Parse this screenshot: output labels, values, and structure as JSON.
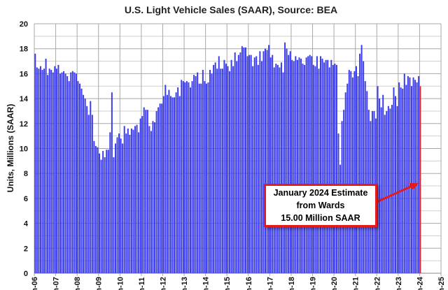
{
  "chart_data": {
    "type": "bar",
    "title": "U.S. Light Vehicle Sales (SAAR), Source: BEA",
    "xlabel": "",
    "ylabel": "Units, Millions (SAAR)",
    "ylim": [
      0,
      20
    ],
    "yticks": [
      0,
      2,
      4,
      6,
      8,
      10,
      12,
      14,
      16,
      18,
      20
    ],
    "xtick_labels": [
      "Jan-06",
      "Jan-07",
      "Jan-08",
      "Jan-09",
      "Jan-10",
      "Jan-11",
      "Jan-12",
      "Jan-13",
      "Jan-14",
      "Jan-15",
      "Jan-16",
      "Jan-17",
      "Jan-18",
      "Jan-19",
      "Jan-20",
      "Jan-21",
      "Jan-22",
      "Jan-23",
      "Jan-24",
      "Jan-25"
    ],
    "grid": true,
    "frequency": "monthly",
    "start": "Jan-06",
    "values": [
      17.6,
      16.5,
      16.4,
      16.6,
      16.3,
      16.4,
      17.2,
      15.9,
      16.4,
      16.3,
      16.1,
      16.6,
      16.4,
      16.7,
      16.0,
      16.1,
      16.2,
      16.0,
      15.8,
      15.4,
      16.1,
      16.2,
      16.1,
      16.0,
      15.4,
      15.2,
      14.8,
      14.3,
      14.0,
      13.4,
      12.7,
      13.8,
      12.7,
      10.6,
      10.2,
      10.1,
      9.6,
      9.1,
      9.8,
      9.3,
      9.9,
      9.9,
      11.3,
      14.5,
      9.3,
      10.4,
      10.9,
      11.2,
      10.8,
      10.4,
      11.8,
      11.2,
      11.6,
      11.1,
      11.6,
      11.5,
      11.8,
      11.9,
      11.3,
      12.4,
      12.6,
      13.3,
      13.1,
      13.1,
      11.8,
      11.4,
      12.2,
      12.1,
      13.0,
      13.3,
      13.6,
      13.6,
      14.2,
      15.1,
      14.3,
      14.7,
      14.2,
      14.1,
      14.1,
      14.5,
      14.9,
      14.2,
      15.5,
      15.4,
      15.3,
      15.4,
      15.3,
      14.9,
      15.4,
      15.9,
      15.8,
      16.1,
      15.2,
      15.2,
      16.3,
      15.4,
      15.2,
      15.3,
      16.3,
      16.0,
      16.7,
      16.9,
      16.4,
      17.4,
      16.4,
      16.4,
      17.1,
      16.8,
      16.6,
      16.2,
      17.1,
      16.6,
      17.7,
      17.0,
      17.5,
      17.7,
      18.2,
      18.1,
      18.1,
      17.4,
      17.5,
      17.5,
      16.6,
      17.3,
      17.4,
      16.7,
      17.8,
      17.0,
      17.8,
      18.0,
      17.9,
      18.3,
      17.3,
      17.5,
      16.5,
      16.8,
      16.7,
      16.5,
      16.9,
      16.1,
      18.5,
      18.0,
      17.5,
      17.8,
      17.1,
      17.0,
      17.4,
      17.1,
      17.3,
      17.2,
      16.8,
      16.7,
      17.3,
      17.4,
      17.5,
      17.4,
      16.7,
      16.6,
      17.4,
      16.4,
      17.4,
      17.2,
      16.9,
      17.1,
      17.1,
      16.5,
      17.1,
      16.7,
      16.8,
      16.7,
      11.2,
      8.7,
      12.2,
      13.1,
      14.5,
      15.2,
      16.3,
      16.2,
      15.7,
      16.2,
      16.6,
      15.8,
      17.6,
      18.3,
      17.0,
      15.4,
      14.6,
      13.1,
      12.2,
      13.0,
      13.0,
      12.4,
      15.0,
      14.0,
      13.3,
      14.3,
      12.7,
      13.0,
      13.4,
      13.2,
      13.5,
      14.9,
      14.2,
      13.4,
      15.3,
      14.9,
      14.8,
      16.0,
      15.1,
      15.8,
      15.7,
      15.0,
      15.7,
      15.5,
      15.3,
      15.8,
      15.0
    ],
    "colors": {
      "bars": "#3b3bf0",
      "estimate": "#e31b1b"
    },
    "annotation": {
      "lines": [
        "January 2024 Estimate",
        "from Wards",
        "15.00 Million SAAR"
      ],
      "points_to": "Jan-24"
    }
  }
}
